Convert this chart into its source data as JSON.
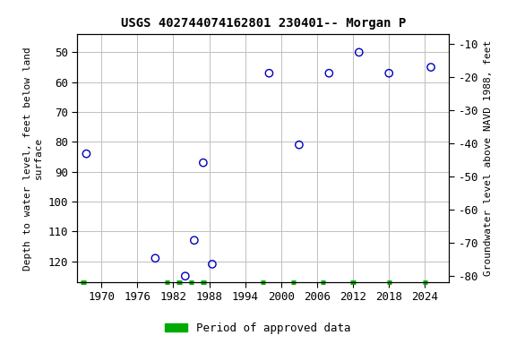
{
  "title": "USGS 402744074162801 230401-- Morgan P",
  "ylabel_left": "Depth to water level, feet below land\nsurface",
  "ylabel_right": "Groundwater level above NAVD 1988, feet",
  "xlim": [
    1966,
    2028
  ],
  "ylim_left": [
    127,
    44
  ],
  "ylim_right": [
    -82,
    -7
  ],
  "xticks": [
    1970,
    1976,
    1982,
    1988,
    1994,
    2000,
    2006,
    2012,
    2018,
    2024
  ],
  "yticks_left": [
    50,
    60,
    70,
    80,
    90,
    100,
    110,
    120
  ],
  "yticks_right": [
    -10,
    -20,
    -30,
    -40,
    -50,
    -60,
    -70,
    -80
  ],
  "scatter_x": [
    1967.5,
    1979,
    1984,
    1985.5,
    1987,
    1988.5,
    1998,
    2003,
    2008,
    2013,
    2018,
    2025
  ],
  "scatter_y": [
    84,
    119,
    125,
    113,
    87,
    121,
    57,
    81,
    57,
    50,
    57,
    55
  ],
  "green_bar_positions": [
    1967,
    1981,
    1983,
    1985,
    1987,
    1997,
    2002,
    2007,
    2012,
    2018,
    2024
  ],
  "marker_color": "#0000bb",
  "marker_size": 6,
  "grid_color": "#c0c0c0",
  "bg_color": "#ffffff",
  "title_fontsize": 10,
  "label_fontsize": 8,
  "tick_fontsize": 9,
  "font_family": "monospace",
  "legend_label": "Period of approved data"
}
